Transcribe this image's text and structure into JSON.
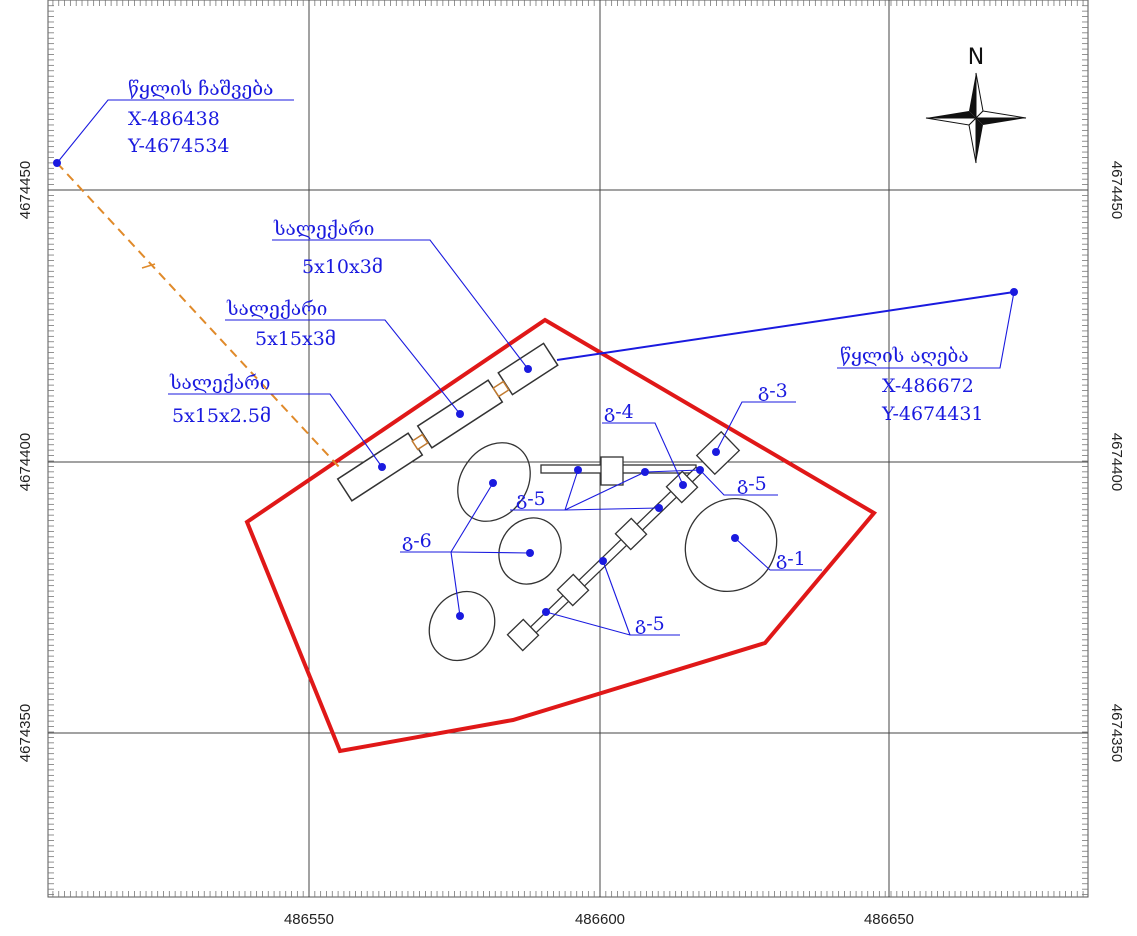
{
  "map": {
    "axes": {
      "x_ticks": [
        "486550",
        "486600",
        "486650"
      ],
      "y_ticks": [
        "4674450",
        "4674400",
        "4674350"
      ]
    },
    "north_label": "N",
    "colors": {
      "boundary": "#e01818",
      "pipeline": "#1a1adf",
      "discharge_line": "#e08a2a",
      "structure": "#333333",
      "grid": "#555555"
    },
    "labels": {
      "discharge": {
        "title": "წყლის ჩაშვება",
        "x": "X-486438",
        "y": "Y-4674534"
      },
      "intake": {
        "title": "წყლის აღება",
        "x": "X-486672",
        "y": "Y-4674431"
      },
      "tank1": {
        "title": "სალექარი",
        "size": "5x10x3მ"
      },
      "tank2": {
        "title": "სალექარი",
        "size": "5x15x3მ"
      },
      "tank3": {
        "title": "სალექარი",
        "size": "5x15x2.5მ"
      },
      "g1": "გ-1",
      "g3": "გ-3",
      "g4": "გ-4",
      "g5a": "გ-5",
      "g5b": "გ-5",
      "g5c": "გ-5",
      "g6": "გ-6"
    }
  }
}
